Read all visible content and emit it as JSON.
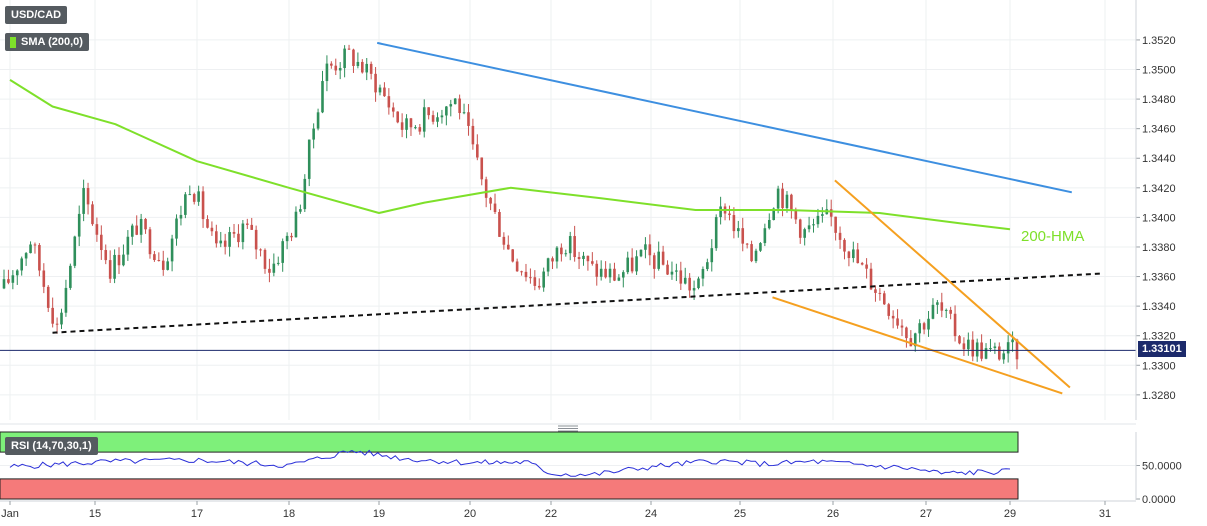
{
  "legend": {
    "symbol": "USD/CAD",
    "indicator": "SMA (200,0)",
    "rsi": "RSI (14,70,30,1)"
  },
  "annotations": {
    "hma_label": "200-HMA",
    "last_price": "1.33101"
  },
  "colors": {
    "bull": "#2f8f5b",
    "bear": "#c9514d",
    "hma": "#7ee02a",
    "upper_trend": "#3d8fe0",
    "wedge": "#f5a020",
    "support": "#111111",
    "last_price_line": "#1c2a6b",
    "rsi_line": "#2a2fd8",
    "rsi_overbought": "#7ef07a",
    "rsi_oversold": "#f57a7a"
  },
  "chart_data": [
    {
      "type": "candlestick",
      "title": "USD/CAD",
      "x_tick_labels": [
        "Jan",
        "15",
        "17",
        "18",
        "19",
        "20",
        "22",
        "24",
        "25",
        "26",
        "27",
        "29",
        "31"
      ],
      "y_tick_labels": [
        "1.3280",
        "1.3300",
        "1.3320",
        "1.3340",
        "1.3360",
        "1.3380",
        "1.3400",
        "1.3420",
        "1.3440",
        "1.3460",
        "1.3480",
        "1.3500",
        "1.3520"
      ],
      "ylim": [
        1.3263,
        1.3547
      ],
      "grid": true,
      "last_price": 1.33101,
      "ohlc_anchors_close": [
        1.3352,
        1.3385,
        1.3325,
        1.3415,
        1.3365,
        1.3395,
        1.337,
        1.3425,
        1.3375,
        1.3395,
        1.3365,
        1.34,
        1.35,
        1.351,
        1.349,
        1.346,
        1.347,
        1.348,
        1.342,
        1.3375,
        1.3355,
        1.3385,
        1.3365,
        1.336,
        1.3375,
        1.3365,
        1.335,
        1.341,
        1.337,
        1.342,
        1.339,
        1.34,
        1.337,
        1.3345,
        1.332,
        1.334,
        1.3315,
        1.3308,
        1.331
      ],
      "series": [
        {
          "name": "SMA (200,0)",
          "x": [
            0,
            0.5,
            1.2,
            2.0,
            3.0,
            4.0,
            4.5,
            5.5,
            6.5,
            7.5,
            8.5,
            9.5,
            10.4,
            11.0
          ],
          "y": [
            1.3493,
            1.3475,
            1.3463,
            1.3438,
            1.342,
            1.3403,
            1.341,
            1.342,
            1.3413,
            1.3405,
            1.3405,
            1.3403,
            1.3396,
            1.3392
          ]
        },
        {
          "name": "Upper trendline",
          "x": [
            3.98,
            11.65
          ],
          "y": [
            1.3518,
            1.3417
          ]
        },
        {
          "name": "Support trendline",
          "x": [
            0.5,
            11.95
          ],
          "y": [
            1.3322,
            1.3362
          ]
        },
        {
          "name": "Wedge upper",
          "x": [
            9.02,
            11.63
          ],
          "y": [
            1.3425,
            1.3285
          ]
        },
        {
          "name": "Wedge lower",
          "x": [
            8.35,
            11.55
          ],
          "y": [
            1.3346,
            1.3281
          ]
        }
      ]
    },
    {
      "type": "line",
      "title": "RSI (14,70,30,1)",
      "y_tick_labels": [
        "0.0000",
        "50.0000"
      ],
      "ylim": [
        0,
        100
      ],
      "overbought": 70,
      "oversold": 30,
      "series": [
        {
          "name": "RSI",
          "x": [
            0,
            0.6,
            1.2,
            2.0,
            3.0,
            3.7,
            4.3,
            5.0,
            5.7,
            6.0,
            6.4,
            7.0,
            7.7,
            8.3,
            8.8,
            9.3,
            9.8,
            10.2,
            10.6,
            11.0
          ],
          "y": [
            48,
            52,
            56,
            58,
            50,
            72,
            60,
            54,
            55,
            38,
            36,
            48,
            57,
            52,
            56,
            51,
            46,
            38,
            40,
            41
          ]
        }
      ]
    }
  ]
}
